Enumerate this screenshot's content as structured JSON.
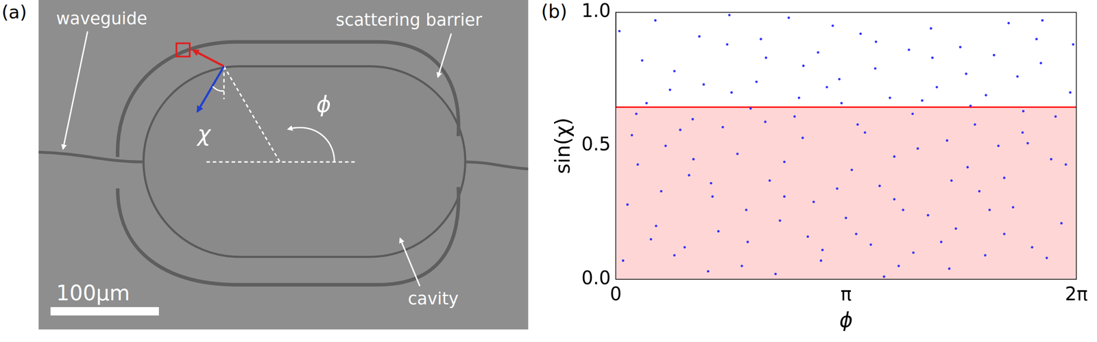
{
  "panel_a": {
    "panel_label": "(a)",
    "labels": {
      "waveguide": "waveguide",
      "barrier": "scattering barrier",
      "cavity": "cavity"
    },
    "angle_labels": [
      "χ",
      "ϕ"
    ],
    "scale_bar": "100μm"
  },
  "chart_data": {
    "panel_label": "(b)",
    "type": "scatter",
    "x_label": "ϕ",
    "y_label": "sin(χ)",
    "xlim": [
      0,
      6.28319
    ],
    "ylim": [
      0,
      1
    ],
    "xticks": [
      0,
      {
        "value": 3.14159,
        "label": "π"
      },
      {
        "value": 6.28319,
        "label": "2π"
      }
    ],
    "yticks": [
      {
        "value": 0,
        "label": "0.0"
      },
      {
        "value": 0.5,
        "label": "0.5"
      },
      {
        "value": 1,
        "label": "1.0"
      }
    ],
    "grid": false,
    "threshold": 0.645,
    "threshold_color": "#ff0000",
    "threshold_fill": "#ffd6d6",
    "color": "#3333ff",
    "x": [
      0.1,
      0.36,
      0.62,
      0.88,
      1.14,
      1.4,
      1.66,
      1.92,
      2.18,
      2.44,
      2.7,
      2.96,
      3.22,
      3.48,
      3.74,
      4.0,
      4.26,
      4.52,
      4.78,
      5.04,
      5.3,
      5.56,
      5.82,
      6.08,
      0.22,
      0.48,
      0.74,
      1.0,
      1.26,
      1.52,
      1.78,
      2.04,
      2.3,
      2.56,
      2.82,
      3.08,
      3.34,
      3.6,
      3.86,
      4.12,
      4.38,
      4.64,
      4.9,
      5.16,
      5.42,
      5.68,
      5.94,
      6.2,
      0.05,
      0.3,
      0.55,
      0.8,
      1.05,
      1.3,
      1.55,
      1.8,
      2.05,
      2.3,
      2.55,
      2.8,
      3.05,
      3.3,
      3.55,
      3.8,
      4.05,
      4.3,
      4.55,
      4.8,
      5.05,
      5.3,
      5.55,
      5.8,
      0.16,
      0.42,
      0.68,
      0.94,
      1.2,
      1.46,
      1.72,
      1.98,
      2.24,
      2.5,
      2.76,
      3.02,
      3.28,
      3.54,
      3.8,
      4.06,
      4.32,
      4.58,
      4.84,
      5.1,
      5.36,
      5.62,
      5.88,
      6.14,
      0.28,
      0.54,
      0.8,
      1.06,
      1.32,
      1.58,
      1.84,
      2.1,
      2.36,
      2.62,
      2.88,
      3.14,
      3.4,
      3.66,
      3.92,
      4.18,
      4.44,
      4.7,
      4.96,
      5.22,
      5.48,
      5.74,
      6.0,
      6.24
    ],
    "values": [
      0.07,
      0.82,
      0.33,
      0.56,
      0.91,
      0.18,
      0.47,
      0.74,
      0.02,
      0.61,
      0.29,
      0.95,
      0.41,
      0.13,
      0.68,
      0.86,
      0.24,
      0.52,
      0.77,
      0.09,
      0.38,
      0.63,
      0.97,
      0.21,
      0.54,
      0.15,
      0.71,
      0.39,
      0.03,
      0.88,
      0.26,
      0.59,
      0.44,
      0.8,
      0.11,
      0.66,
      0.92,
      0.35,
      0.05,
      0.49,
      0.72,
      0.19,
      0.58,
      0.84,
      0.27,
      0.12,
      0.45,
      0.7,
      0.93,
      0.43,
      0.2,
      0.78,
      0.6,
      0.36,
      0.99,
      0.14,
      0.83,
      0.31,
      0.53,
      0.07,
      0.75,
      0.58,
      0.89,
      0.3,
      0.62,
      0.94,
      0.04,
      0.42,
      0.69,
      0.17,
      0.55,
      0.81,
      0.28,
      0.66,
      0.5,
      0.12,
      0.73,
      0.57,
      0.05,
      0.9,
      0.22,
      0.68,
      0.85,
      0.34,
      0.17,
      0.79,
      0.46,
      0.1,
      0.83,
      0.37,
      0.65,
      0.26,
      0.96,
      0.51,
      0.08,
      0.43,
      0.62,
      0.97,
      0.09,
      0.45,
      0.31,
      0.7,
      0.64,
      0.37,
      0.98,
      0.16,
      0.72,
      0.23,
      0.55,
      0.01,
      0.26,
      0.67,
      0.14,
      0.87,
      0.33,
      0.5,
      0.76,
      0.9,
      0.61,
      0.88
    ]
  }
}
